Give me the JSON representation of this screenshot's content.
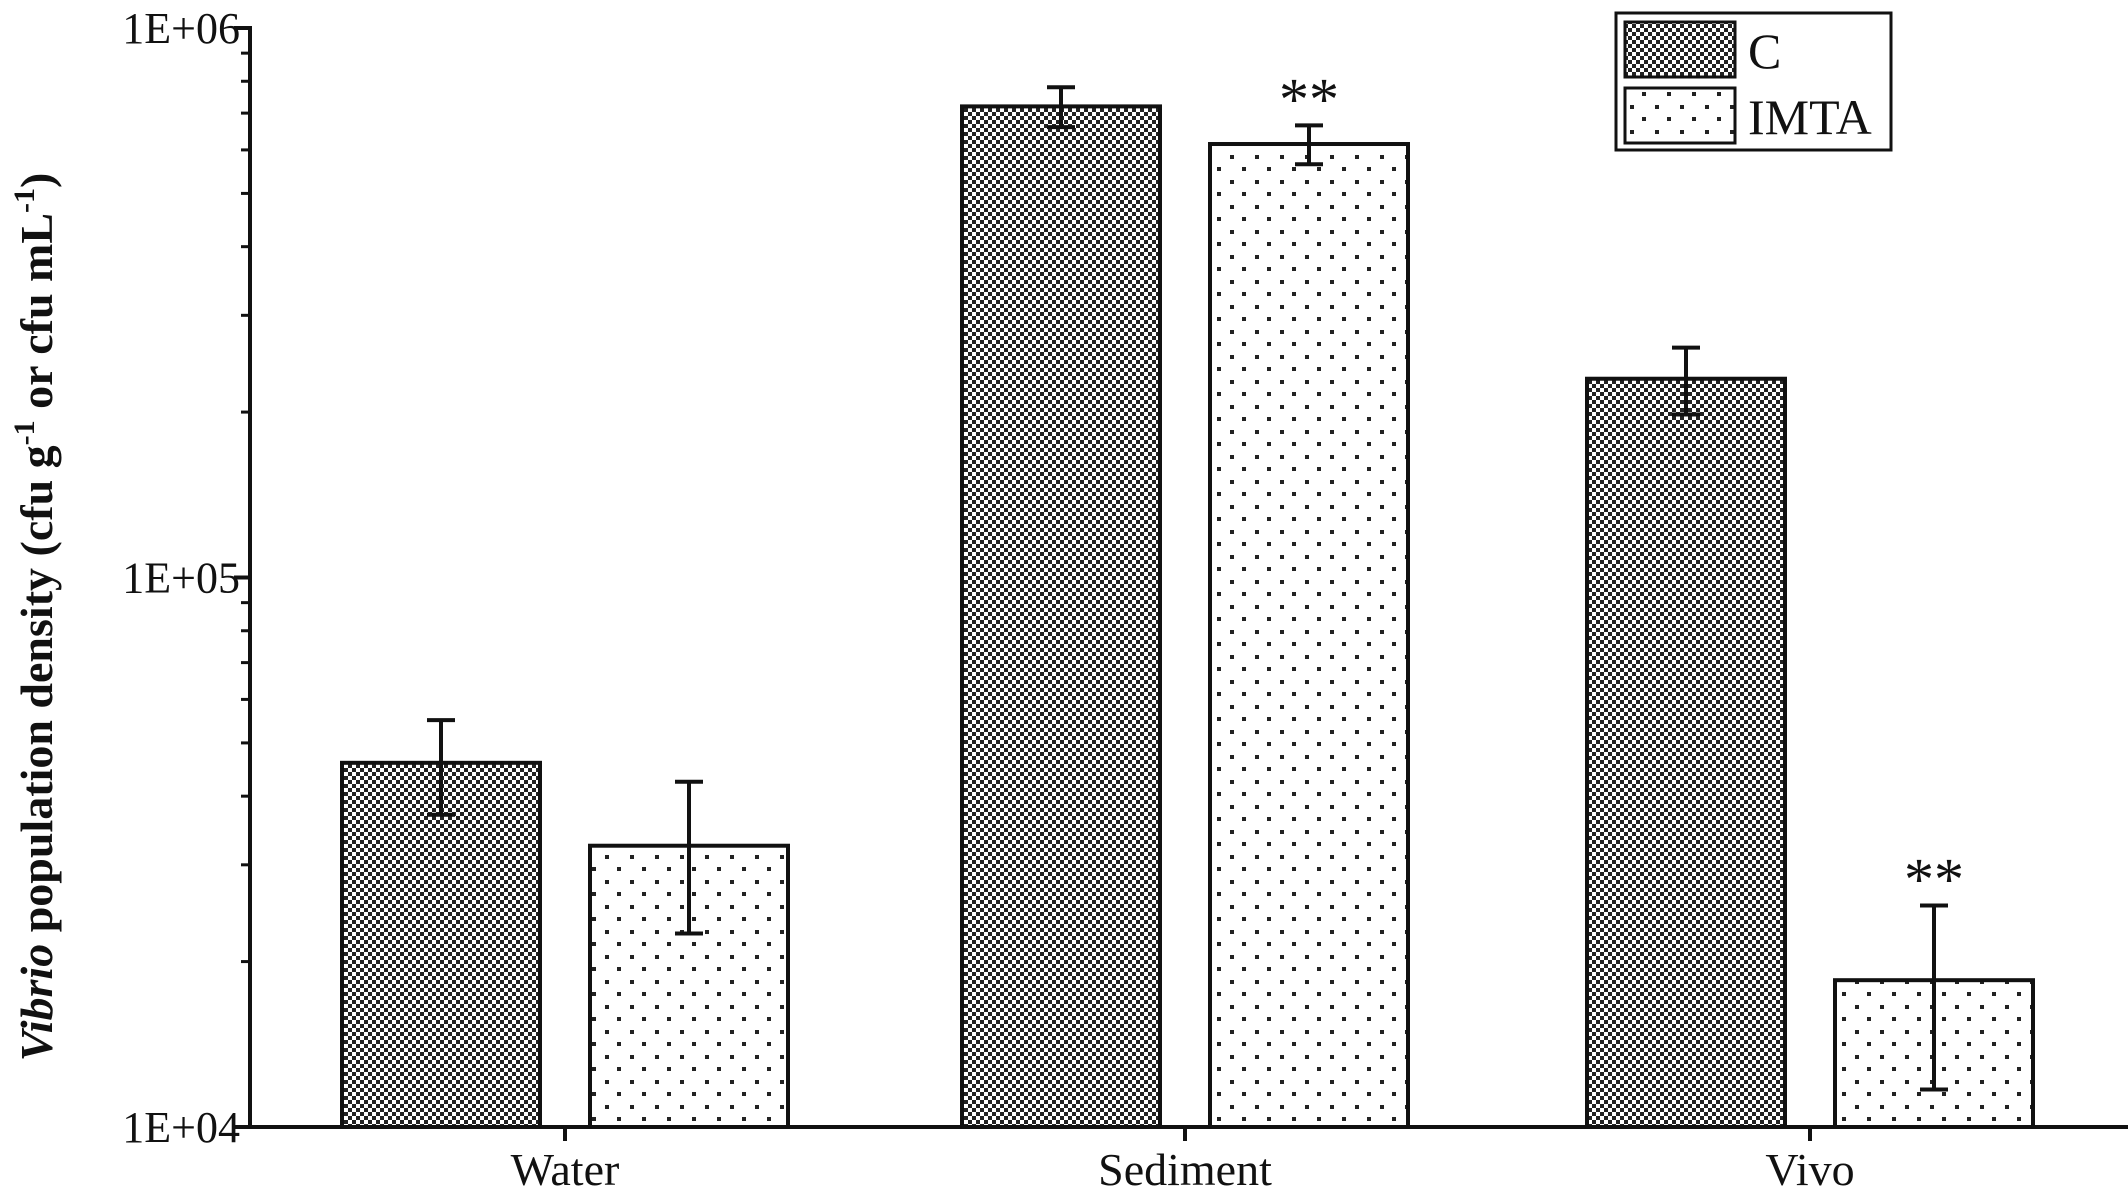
{
  "chart_data": {
    "type": "bar",
    "y_scale": "log",
    "ylim": [
      10000,
      1000000
    ],
    "y_ticks": [
      {
        "value": 10000,
        "label": "1E+04"
      },
      {
        "value": 100000,
        "label": "1E+05"
      },
      {
        "value": 1000000,
        "label": "1E+06"
      }
    ],
    "ylabel_italic": "Vibrio",
    "ylabel_main": " population density (cfu g",
    "ylabel_sup1": "-1",
    "ylabel_mid": " or cfu mL",
    "ylabel_sup2": "-1",
    "ylabel_end": ")",
    "xlabel": "",
    "categories": [
      "Water",
      "Sediment",
      "Vivo"
    ],
    "series": [
      {
        "name": "C",
        "pattern": "checker",
        "values": [
          46000,
          720000,
          230000
        ],
        "errors": [
          9000,
          60000,
          32000
        ],
        "significance": [
          "",
          "",
          ""
        ]
      },
      {
        "name": "IMTA",
        "pattern": "dots",
        "values": [
          32500,
          615000,
          18500
        ],
        "errors": [
          10000,
          50000,
          6800
        ],
        "significance": [
          "",
          "**",
          "**"
        ]
      }
    ],
    "legend_position": "top-right",
    "grid": false
  }
}
